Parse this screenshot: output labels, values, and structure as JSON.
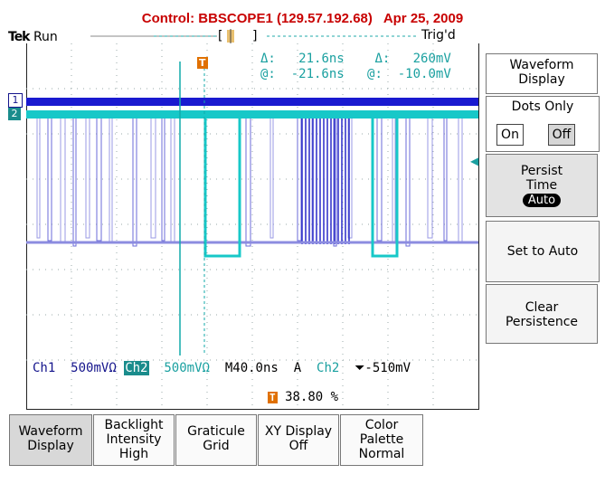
{
  "header": {
    "title": "Control: BBSCOPE1 (129.57.192.68)   Apr 25, 2009",
    "brand": "Tek",
    "run_state": "Run",
    "trigger_state": "Trig'd",
    "title_color": "#c80000"
  },
  "cursor_readout": {
    "delta_time": "21.6ns",
    "at_time": "-21.6ns",
    "delta_voltage": "260mV",
    "at_voltage": "-10.0mV",
    "delta_symbol": "Δ:",
    "at_symbol": "@:"
  },
  "channels": {
    "ch1_marker": "1",
    "ch2_marker": "2",
    "ch1_label": "Ch1",
    "ch1_scale": "500mV",
    "ch1_coupling": "Ω",
    "ch2_label": "Ch2",
    "ch2_scale": "500mV",
    "ch2_coupling": "Ω",
    "timebase": "M40.0ns",
    "trigger_mode": "A",
    "trigger_source": "Ch2",
    "trigger_slope": "⏷",
    "trigger_level": "-510mV",
    "trigger_position": "38.80 %",
    "trigger_marker": "T",
    "ch1_color": "#1a1ad0",
    "ch2_color": "#17c8c8"
  },
  "side_menu": {
    "title": "Waveform Display",
    "dots_only_label": "Dots Only",
    "on_label": "On",
    "off_label": "Off",
    "persist_label": "Persist Time",
    "persist_value": "Auto",
    "set_to_auto": "Set to Auto",
    "clear_persistence": "Clear Persistence"
  },
  "bottom_menu": [
    {
      "line1": "Waveform",
      "line2": "Display",
      "line3": ""
    },
    {
      "line1": "Backlight",
      "line2": "Intensity",
      "line3": "High"
    },
    {
      "line1": "Graticule",
      "line2": "Grid",
      "line3": ""
    },
    {
      "line1": "XY Display",
      "line2": "Off",
      "line3": ""
    },
    {
      "line1": "Color",
      "line2": "Palette",
      "line3": "Normal"
    }
  ]
}
